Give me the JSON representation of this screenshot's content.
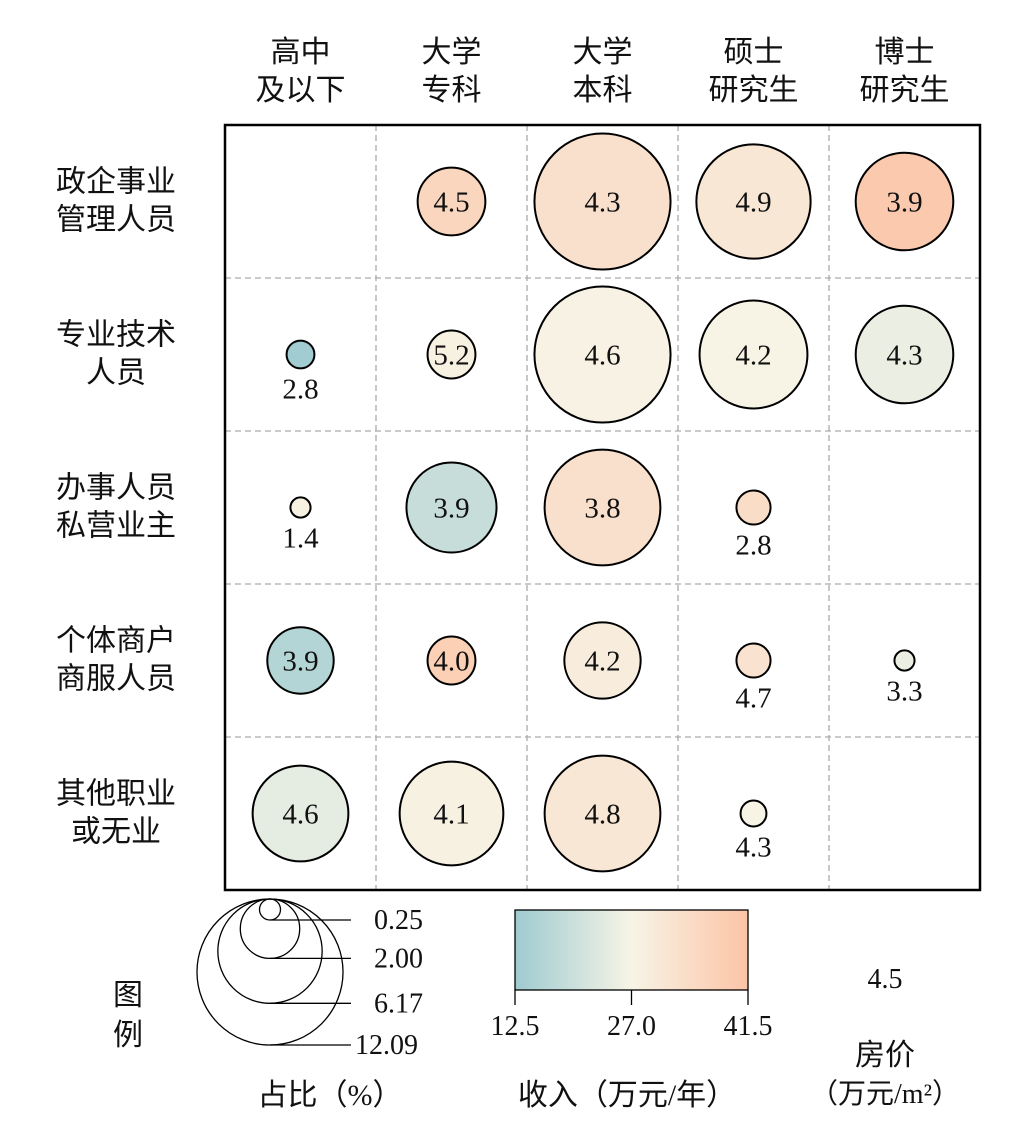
{
  "chart_data": {
    "type": "bubble-matrix",
    "columns": [
      [
        "高中",
        "及以下"
      ],
      [
        "大学",
        "专科"
      ],
      [
        "大学",
        "本科"
      ],
      [
        "硕士",
        "研究生"
      ],
      [
        "博士",
        "研究生"
      ]
    ],
    "rows": [
      [
        "政企事业",
        "管理人员"
      ],
      [
        "专业技术",
        "人员"
      ],
      [
        "办事人员",
        "私营业主"
      ],
      [
        "个体商户",
        "商服人员"
      ],
      [
        "其他职业",
        "或无业"
      ]
    ],
    "cells": [
      [
        null,
        {
          "price": "4.5",
          "share": 2.6,
          "income": 36
        },
        {
          "price": "4.3",
          "share": 10.5,
          "income": 33
        },
        {
          "price": "4.9",
          "share": 7.4,
          "income": 31
        },
        {
          "price": "3.9",
          "share": 5.4,
          "income": 40
        }
      ],
      [
        {
          "price": "2.8",
          "share": 0.44,
          "income": 13
        },
        {
          "price": "5.2",
          "share": 1.3,
          "income": 28
        },
        {
          "price": "4.6",
          "share": 10.5,
          "income": 27.5
        },
        {
          "price": "4.2",
          "share": 6.6,
          "income": 27
        },
        {
          "price": "4.3",
          "share": 5.4,
          "income": 25
        }
      ],
      [
        {
          "price": "1.4",
          "share": 0.23,
          "income": 28
        },
        {
          "price": "3.9",
          "share": 4.6,
          "income": 19
        },
        {
          "price": "3.8",
          "share": 7.6,
          "income": 33
        },
        {
          "price": "2.8",
          "share": 0.66,
          "income": 34
        },
        null
      ],
      [
        {
          "price": "3.9",
          "share": 2.5,
          "income": 16
        },
        {
          "price": "4.0",
          "share": 1.3,
          "income": 38
        },
        {
          "price": "4.2",
          "share": 3.3,
          "income": 29
        },
        {
          "price": "4.7",
          "share": 0.66,
          "income": 32
        },
        {
          "price": "3.3",
          "share": 0.23,
          "income": 25
        }
      ],
      [
        {
          "price": "4.6",
          "share": 5.2,
          "income": 24
        },
        {
          "price": "4.1",
          "share": 6.1,
          "income": 28
        },
        {
          "price": "4.8",
          "share": 7.6,
          "income": 31
        },
        {
          "price": "4.3",
          "share": 0.38,
          "income": 27
        },
        null
      ]
    ],
    "size_legend": {
      "title": "占比（%）",
      "values": [
        0.25,
        2.0,
        6.17,
        12.09
      ],
      "labels": [
        "0.25",
        "2.00",
        "6.17",
        "12.09"
      ]
    },
    "color_legend": {
      "title": "收入（万元/年）",
      "range": [
        12.5,
        41.5
      ],
      "ticks": [
        "12.5",
        "27.0",
        "41.5"
      ],
      "colors": [
        "#9ecbd0",
        "#f7f4e6",
        "#fcc4a6"
      ]
    },
    "price_legend": {
      "sample": "4.5",
      "title": "房价",
      "unit": "（万元/m²）"
    },
    "legend_label": [
      "图",
      "例"
    ]
  }
}
